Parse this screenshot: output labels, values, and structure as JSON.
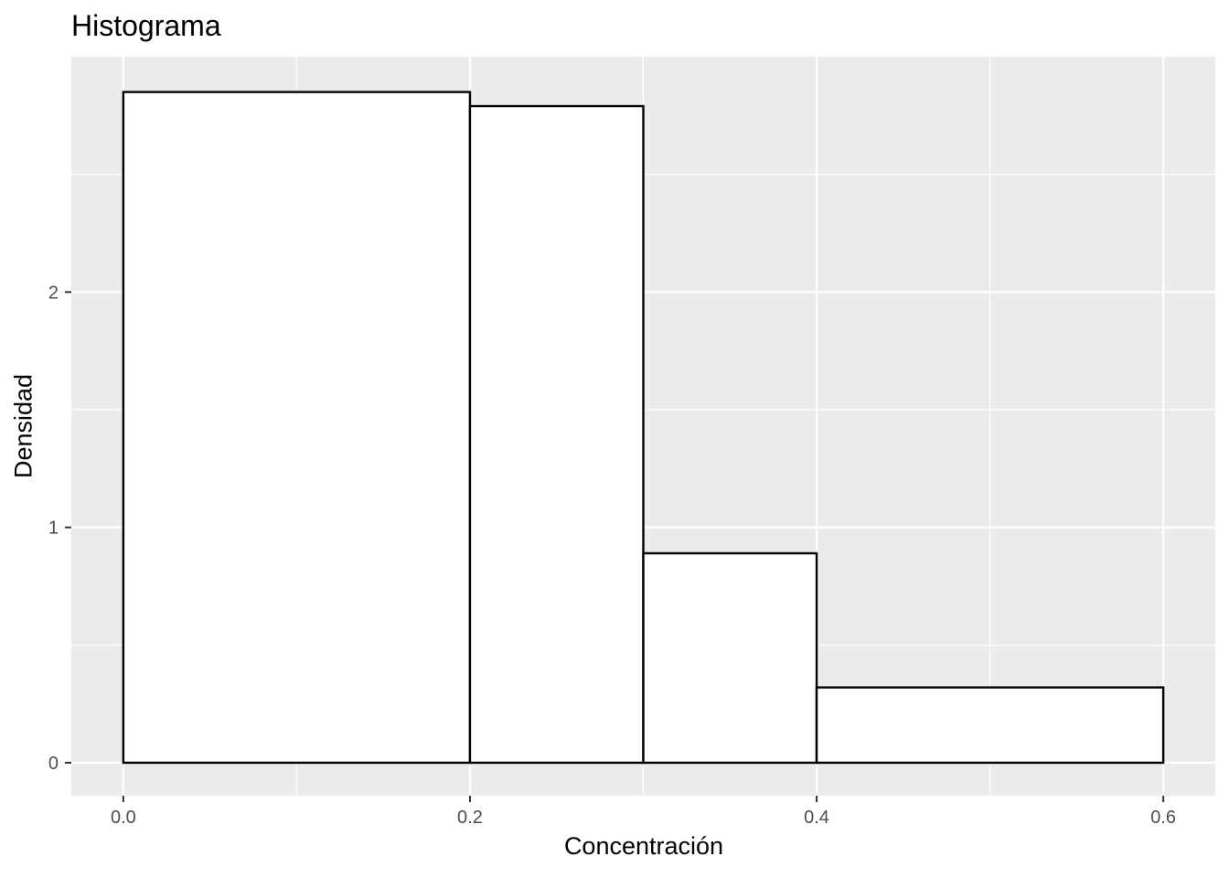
{
  "chart_data": {
    "type": "bar",
    "title": "Histograma",
    "xlabel": "Concentración",
    "ylabel": "Densidad",
    "bins": [
      {
        "x0": 0.0,
        "x1": 0.2,
        "value": 2.85
      },
      {
        "x0": 0.2,
        "x1": 0.3,
        "value": 2.79
      },
      {
        "x0": 0.3,
        "x1": 0.4,
        "value": 0.89
      },
      {
        "x0": 0.4,
        "x1": 0.6,
        "value": 0.32
      }
    ],
    "xlim": [
      -0.03,
      0.63
    ],
    "ylim": [
      -0.14,
      3.0
    ],
    "xticks": [
      0.0,
      0.2,
      0.4,
      0.6
    ],
    "xtick_labels": [
      "0.0",
      "0.2",
      "0.4",
      "0.6"
    ],
    "yticks": [
      0,
      1,
      2
    ],
    "ytick_labels": [
      "0",
      "1",
      "2"
    ],
    "grid": true,
    "colors": {
      "panel": "#ebebeb",
      "grid": "#ffffff",
      "bar_fill": "#ffffff",
      "bar_stroke": "#000000"
    }
  }
}
